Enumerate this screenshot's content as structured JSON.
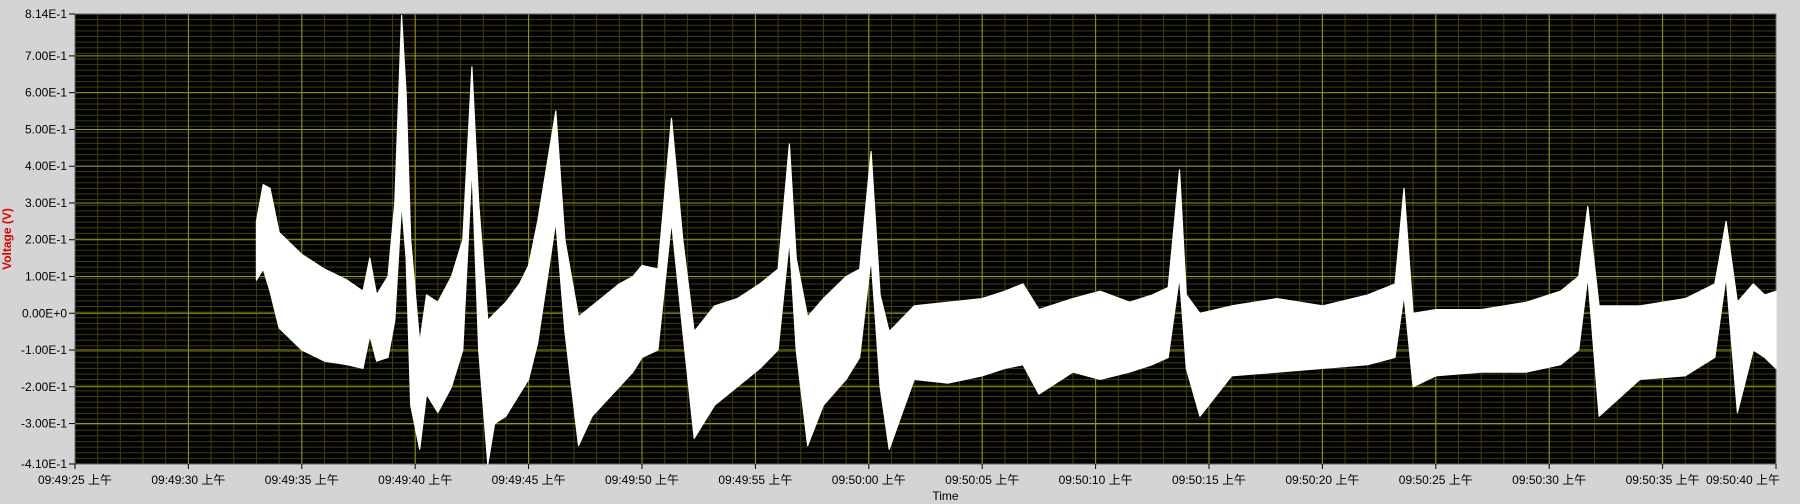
{
  "chart_data": {
    "type": "line",
    "title": "",
    "xlabel": "Time",
    "ylabel": "Voltage (V)",
    "ylim": [
      -0.41,
      0.814
    ],
    "y_ticks": [
      {
        "value": 0.814,
        "label": "8.14E-1"
      },
      {
        "value": 0.7,
        "label": "7.00E-1"
      },
      {
        "value": 0.6,
        "label": "6.00E-1"
      },
      {
        "value": 0.5,
        "label": "5.00E-1"
      },
      {
        "value": 0.4,
        "label": "4.00E-1"
      },
      {
        "value": 0.3,
        "label": "3.00E-1"
      },
      {
        "value": 0.2,
        "label": "2.00E-1"
      },
      {
        "value": 0.1,
        "label": "1.00E-1"
      },
      {
        "value": 0.0,
        "label": "0.00E+0"
      },
      {
        "value": -0.1,
        "label": "-1.00E-1"
      },
      {
        "value": -0.2,
        "label": "-2.00E-1"
      },
      {
        "value": -0.3,
        "label": "-3.00E-1"
      },
      {
        "value": -0.41,
        "label": "-4.10E-1"
      }
    ],
    "xlim": [
      "09:49:25",
      "09:50:40"
    ],
    "x_ticks": [
      {
        "value": "09:49:25",
        "label": "09:49:25 上午"
      },
      {
        "value": "09:49:30",
        "label": "09:49:30 上午"
      },
      {
        "value": "09:49:35",
        "label": "09:49:35 上午"
      },
      {
        "value": "09:49:40",
        "label": "09:49:40 上午"
      },
      {
        "value": "09:49:45",
        "label": "09:49:45 上午"
      },
      {
        "value": "09:49:50",
        "label": "09:49:50 上午"
      },
      {
        "value": "09:49:55",
        "label": "09:49:55 上午"
      },
      {
        "value": "09:50:00",
        "label": "09:50:00 上午"
      },
      {
        "value": "09:50:05",
        "label": "09:50:05 上午"
      },
      {
        "value": "09:50:10",
        "label": "09:50:10 上午"
      },
      {
        "value": "09:50:15",
        "label": "09:50:15 上午"
      },
      {
        "value": "09:50:20",
        "label": "09:50:20 上午"
      },
      {
        "value": "09:50:25",
        "label": "09:50:25 上午"
      },
      {
        "value": "09:50:30",
        "label": "09:50:30 上午"
      },
      {
        "value": "09:50:35",
        "label": "09:50:35 上午"
      },
      {
        "value": "09:50:40",
        "label": "09:50:40 上午"
      }
    ],
    "grid": true,
    "minor_grid": true,
    "legend": "none",
    "colors": {
      "background": "#000000",
      "major_grid": "#9a9a00",
      "minor_grid": "#3f3f00",
      "trace": "#ffffff",
      "ylabel": "#e00000",
      "frame": "#d4d4d4"
    },
    "series": [
      {
        "upper": [
          [
            "09:49:33.0",
            0.25
          ],
          [
            "09:49:33.3",
            0.35
          ],
          [
            "09:49:33.6",
            0.34
          ],
          [
            "09:49:34.0",
            0.22
          ],
          [
            "09:49:35.0",
            0.16
          ],
          [
            "09:49:36.0",
            0.12
          ],
          [
            "09:49:37.0",
            0.09
          ],
          [
            "09:49:37.7",
            0.06
          ],
          [
            "09:49:38.0",
            0.15
          ],
          [
            "09:49:38.3",
            0.05
          ],
          [
            "09:49:38.8",
            0.1
          ],
          [
            "09:49:39.1",
            0.3
          ],
          [
            "09:49:39.4",
            0.81
          ],
          [
            "09:49:39.6",
            0.6
          ],
          [
            "09:49:39.8",
            0.2
          ],
          [
            "09:49:40.2",
            -0.08
          ],
          [
            "09:49:40.5",
            0.05
          ],
          [
            "09:49:41.0",
            0.03
          ],
          [
            "09:49:41.6",
            0.1
          ],
          [
            "09:49:42.1",
            0.2
          ],
          [
            "09:49:42.5",
            0.67
          ],
          [
            "09:49:42.8",
            0.3
          ],
          [
            "09:49:43.2",
            -0.02
          ],
          [
            "09:49:43.5",
            0.0
          ],
          [
            "09:49:44.0",
            0.03
          ],
          [
            "09:49:44.6",
            0.08
          ],
          [
            "09:49:45.0",
            0.13
          ],
          [
            "09:49:45.4",
            0.25
          ],
          [
            "09:49:46.2",
            0.55
          ],
          [
            "09:49:46.6",
            0.2
          ],
          [
            "09:49:47.2",
            -0.01
          ],
          [
            "09:49:47.8",
            0.02
          ],
          [
            "09:49:48.4",
            0.05
          ],
          [
            "09:49:49.0",
            0.08
          ],
          [
            "09:49:49.6",
            0.1
          ],
          [
            "09:49:50.0",
            0.13
          ],
          [
            "09:49:50.7",
            0.12
          ],
          [
            "09:49:51.3",
            0.53
          ],
          [
            "09:49:51.8",
            0.2
          ],
          [
            "09:49:52.3",
            -0.05
          ],
          [
            "09:49:53.2",
            0.02
          ],
          [
            "09:49:54.2",
            0.04
          ],
          [
            "09:49:55.2",
            0.08
          ],
          [
            "09:49:56.0",
            0.12
          ],
          [
            "09:49:56.5",
            0.46
          ],
          [
            "09:49:56.8",
            0.15
          ],
          [
            "09:49:57.3",
            -0.01
          ],
          [
            "09:49:58.0",
            0.04
          ],
          [
            "09:49:59.0",
            0.1
          ],
          [
            "09:49:59.6",
            0.12
          ],
          [
            "09:50:00.1",
            0.44
          ],
          [
            "09:50:00.5",
            0.05
          ],
          [
            "09:50:00.9",
            -0.05
          ],
          [
            "09:50:02.0",
            0.02
          ],
          [
            "09:50:03.5",
            0.03
          ],
          [
            "09:50:05.0",
            0.04
          ],
          [
            "09:50:06.0",
            0.06
          ],
          [
            "09:50:06.8",
            0.08
          ],
          [
            "09:50:07.5",
            0.01
          ],
          [
            "09:50:09.0",
            0.04
          ],
          [
            "09:50:10.2",
            0.06
          ],
          [
            "09:50:11.5",
            0.03
          ],
          [
            "09:50:12.5",
            0.05
          ],
          [
            "09:50:13.2",
            0.07
          ],
          [
            "09:50:13.7",
            0.39
          ],
          [
            "09:50:14.0",
            0.05
          ],
          [
            "09:50:14.6",
            0.0
          ],
          [
            "09:50:16.0",
            0.02
          ],
          [
            "09:50:18.0",
            0.04
          ],
          [
            "09:50:20.0",
            0.02
          ],
          [
            "09:50:22.0",
            0.05
          ],
          [
            "09:50:23.2",
            0.08
          ],
          [
            "09:50:23.6",
            0.34
          ],
          [
            "09:50:24.0",
            0.0
          ],
          [
            "09:50:25.0",
            0.01
          ],
          [
            "09:50:27.0",
            0.01
          ],
          [
            "09:50:29.0",
            0.03
          ],
          [
            "09:50:30.5",
            0.06
          ],
          [
            "09:50:31.3",
            0.1
          ],
          [
            "09:50:31.7",
            0.29
          ],
          [
            "09:50:32.2",
            0.02
          ],
          [
            "09:50:34.0",
            0.02
          ],
          [
            "09:50:36.0",
            0.04
          ],
          [
            "09:50:37.3",
            0.08
          ],
          [
            "09:50:37.8",
            0.25
          ],
          [
            "09:50:38.3",
            0.03
          ],
          [
            "09:50:39.0",
            0.08
          ],
          [
            "09:50:39.5",
            0.05
          ],
          [
            "09:50:40.0",
            0.06
          ]
        ],
        "lower": [
          [
            "09:49:33.0",
            0.09
          ],
          [
            "09:49:33.3",
            0.12
          ],
          [
            "09:49:33.6",
            0.06
          ],
          [
            "09:49:34.0",
            -0.04
          ],
          [
            "09:49:35.0",
            -0.1
          ],
          [
            "09:49:36.0",
            -0.13
          ],
          [
            "09:49:37.0",
            -0.14
          ],
          [
            "09:49:37.7",
            -0.15
          ],
          [
            "09:49:38.0",
            -0.06
          ],
          [
            "09:49:38.3",
            -0.13
          ],
          [
            "09:49:38.8",
            -0.12
          ],
          [
            "09:49:39.1",
            -0.02
          ],
          [
            "09:49:39.4",
            0.3
          ],
          [
            "09:49:39.6",
            0.15
          ],
          [
            "09:49:39.8",
            -0.25
          ],
          [
            "09:49:40.2",
            -0.37
          ],
          [
            "09:49:40.5",
            -0.22
          ],
          [
            "09:49:41.0",
            -0.27
          ],
          [
            "09:49:41.6",
            -0.2
          ],
          [
            "09:49:42.1",
            -0.1
          ],
          [
            "09:49:42.5",
            0.4
          ],
          [
            "09:49:42.8",
            -0.1
          ],
          [
            "09:49:43.2",
            -0.41
          ],
          [
            "09:49:43.5",
            -0.3
          ],
          [
            "09:49:44.0",
            -0.28
          ],
          [
            "09:49:44.6",
            -0.22
          ],
          [
            "09:49:45.0",
            -0.18
          ],
          [
            "09:49:45.4",
            -0.08
          ],
          [
            "09:49:46.2",
            0.25
          ],
          [
            "09:49:46.6",
            -0.05
          ],
          [
            "09:49:47.2",
            -0.36
          ],
          [
            "09:49:47.8",
            -0.28
          ],
          [
            "09:49:48.4",
            -0.24
          ],
          [
            "09:49:49.0",
            -0.2
          ],
          [
            "09:49:49.6",
            -0.16
          ],
          [
            "09:49:50.0",
            -0.12
          ],
          [
            "09:49:50.7",
            -0.1
          ],
          [
            "09:49:51.3",
            0.25
          ],
          [
            "09:49:51.8",
            -0.05
          ],
          [
            "09:49:52.3",
            -0.34
          ],
          [
            "09:49:53.2",
            -0.25
          ],
          [
            "09:49:54.2",
            -0.2
          ],
          [
            "09:49:55.2",
            -0.15
          ],
          [
            "09:49:56.0",
            -0.1
          ],
          [
            "09:49:56.5",
            0.2
          ],
          [
            "09:49:56.8",
            -0.1
          ],
          [
            "09:49:57.3",
            -0.36
          ],
          [
            "09:49:58.0",
            -0.25
          ],
          [
            "09:49:59.0",
            -0.18
          ],
          [
            "09:49:59.6",
            -0.12
          ],
          [
            "09:50:00.1",
            0.15
          ],
          [
            "09:50:00.5",
            -0.2
          ],
          [
            "09:50:00.9",
            -0.37
          ],
          [
            "09:50:02.0",
            -0.18
          ],
          [
            "09:50:03.5",
            -0.19
          ],
          [
            "09:50:05.0",
            -0.17
          ],
          [
            "09:50:06.0",
            -0.15
          ],
          [
            "09:50:06.8",
            -0.14
          ],
          [
            "09:50:07.5",
            -0.22
          ],
          [
            "09:50:09.0",
            -0.16
          ],
          [
            "09:50:10.2",
            -0.18
          ],
          [
            "09:50:11.5",
            -0.16
          ],
          [
            "09:50:12.5",
            -0.14
          ],
          [
            "09:50:13.2",
            -0.12
          ],
          [
            "09:50:13.7",
            0.1
          ],
          [
            "09:50:14.0",
            -0.15
          ],
          [
            "09:50:14.6",
            -0.28
          ],
          [
            "09:50:16.0",
            -0.17
          ],
          [
            "09:50:18.0",
            -0.16
          ],
          [
            "09:50:20.0",
            -0.15
          ],
          [
            "09:50:22.0",
            -0.14
          ],
          [
            "09:50:23.2",
            -0.12
          ],
          [
            "09:50:23.6",
            0.05
          ],
          [
            "09:50:24.0",
            -0.2
          ],
          [
            "09:50:25.0",
            -0.17
          ],
          [
            "09:50:27.0",
            -0.16
          ],
          [
            "09:50:29.0",
            -0.16
          ],
          [
            "09:50:30.5",
            -0.14
          ],
          [
            "09:50:31.3",
            -0.1
          ],
          [
            "09:50:31.7",
            0.1
          ],
          [
            "09:50:32.2",
            -0.28
          ],
          [
            "09:50:34.0",
            -0.18
          ],
          [
            "09:50:36.0",
            -0.17
          ],
          [
            "09:50:37.3",
            -0.12
          ],
          [
            "09:50:37.8",
            0.1
          ],
          [
            "09:50:38.3",
            -0.27
          ],
          [
            "09:50:39.0",
            -0.1
          ],
          [
            "09:50:39.5",
            -0.12
          ],
          [
            "09:50:40.0",
            -0.15
          ]
        ]
      }
    ]
  }
}
